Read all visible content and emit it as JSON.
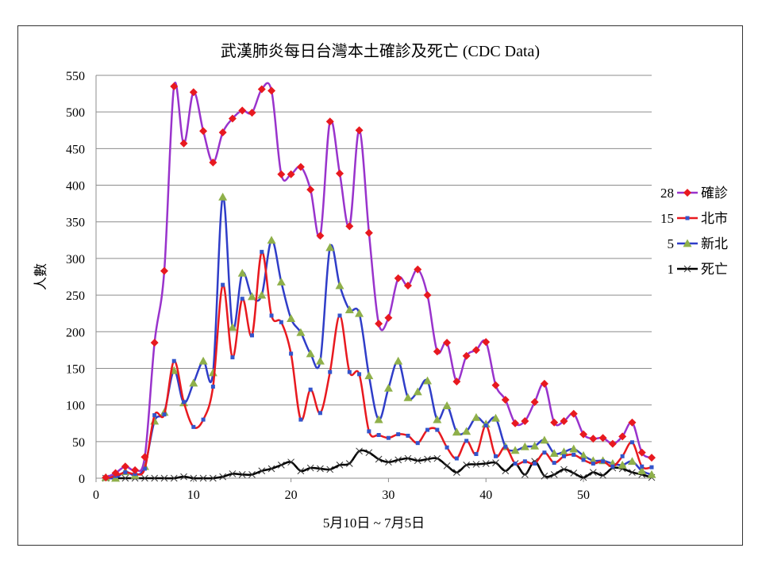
{
  "chart_data": {
    "type": "line",
    "title": "武漢肺炎每日台灣本土確診及死亡 (CDC Data)",
    "xlabel": "5月10日 ~ 7月5日",
    "ylabel": "人數",
    "xlim": [
      0,
      57
    ],
    "ylim": [
      0,
      550
    ],
    "xticks": [
      0,
      10,
      20,
      30,
      40,
      50
    ],
    "yticks": [
      0,
      50,
      100,
      150,
      200,
      250,
      300,
      350,
      400,
      450,
      500,
      550
    ],
    "grid": "horizontal",
    "legend_position": "right",
    "series": [
      {
        "name": "確診",
        "legend_value": "28",
        "color": "#9933cc",
        "marker": "diamond",
        "marker_color": "#e8191f",
        "x": [
          1,
          2,
          3,
          4,
          5,
          6,
          7,
          8,
          9,
          10,
          11,
          12,
          13,
          14,
          15,
          16,
          17,
          18,
          19,
          20,
          21,
          22,
          23,
          24,
          25,
          26,
          27,
          28,
          29,
          30,
          31,
          32,
          33,
          34,
          35,
          36,
          37,
          38,
          39,
          40,
          41,
          42,
          43,
          44,
          45,
          46,
          47,
          48,
          49,
          50,
          51,
          52,
          53,
          54,
          55,
          56,
          57
        ],
        "values": [
          1,
          7,
          16,
          11,
          29,
          185,
          283,
          535,
          457,
          527,
          474,
          431,
          472,
          491,
          502,
          499,
          531,
          529,
          415,
          415,
          425,
          394,
          331,
          487,
          416,
          344,
          475,
          335,
          211,
          219,
          273,
          263,
          285,
          250,
          173,
          185,
          132,
          167,
          175,
          186,
          127,
          107,
          75,
          78,
          104,
          129,
          76,
          78,
          88,
          60,
          54,
          55,
          47,
          57,
          76,
          35,
          28
        ]
      },
      {
        "name": "北市",
        "legend_value": "15",
        "color": "#e8191f",
        "marker": "square",
        "marker_color": "#3355cc",
        "x": [
          1,
          2,
          3,
          4,
          5,
          6,
          7,
          8,
          9,
          10,
          11,
          12,
          13,
          14,
          15,
          16,
          17,
          18,
          19,
          20,
          21,
          22,
          23,
          24,
          25,
          26,
          27,
          28,
          29,
          30,
          31,
          32,
          33,
          34,
          35,
          36,
          37,
          38,
          39,
          40,
          41,
          42,
          43,
          44,
          45,
          46,
          47,
          48,
          49,
          50,
          51,
          52,
          53,
          54,
          55,
          56,
          57
        ],
        "values": [
          0,
          3,
          8,
          6,
          13,
          86,
          87,
          160,
          104,
          70,
          80,
          125,
          264,
          165,
          245,
          195,
          309,
          222,
          213,
          170,
          80,
          121,
          89,
          145,
          222,
          145,
          142,
          64,
          59,
          55,
          60,
          58,
          48,
          66,
          66,
          42,
          27,
          51,
          33,
          72,
          30,
          43,
          20,
          23,
          20,
          35,
          21,
          30,
          32,
          25,
          20,
          23,
          16,
          30,
          49,
          16,
          15
        ]
      },
      {
        "name": "新北",
        "legend_value": "5",
        "color": "#2f3dc8",
        "marker": "triangle",
        "marker_color": "#8fb04a",
        "x": [
          1,
          2,
          3,
          4,
          5,
          6,
          7,
          8,
          9,
          10,
          11,
          12,
          13,
          14,
          15,
          16,
          17,
          18,
          19,
          20,
          21,
          22,
          23,
          24,
          25,
          26,
          27,
          28,
          29,
          30,
          31,
          32,
          33,
          34,
          35,
          36,
          37,
          38,
          39,
          40,
          41,
          42,
          43,
          44,
          45,
          46,
          47,
          48,
          49,
          50,
          51,
          52,
          53,
          54,
          55,
          56,
          57
        ],
        "values": [
          1,
          0,
          9,
          4,
          16,
          78,
          90,
          147,
          103,
          130,
          160,
          144,
          384,
          206,
          280,
          248,
          250,
          325,
          268,
          218,
          199,
          170,
          160,
          315,
          263,
          230,
          225,
          140,
          80,
          123,
          160,
          110,
          118,
          133,
          80,
          99,
          63,
          64,
          83,
          74,
          82,
          43,
          38,
          43,
          44,
          52,
          34,
          36,
          40,
          31,
          24,
          24,
          20,
          18,
          23,
          10,
          5
        ]
      },
      {
        "name": "死亡",
        "legend_value": "1",
        "color": "#000000",
        "marker": "x",
        "marker_color": "#333333",
        "x": [
          1,
          2,
          3,
          4,
          5,
          6,
          7,
          8,
          9,
          10,
          11,
          12,
          13,
          14,
          15,
          16,
          17,
          18,
          19,
          20,
          21,
          22,
          23,
          24,
          25,
          26,
          27,
          28,
          29,
          30,
          31,
          32,
          33,
          34,
          35,
          36,
          37,
          38,
          39,
          40,
          41,
          42,
          43,
          44,
          45,
          46,
          47,
          48,
          49,
          50,
          51,
          52,
          53,
          54,
          55,
          56,
          57
        ],
        "values": [
          0,
          0,
          0,
          0,
          0,
          0,
          0,
          0,
          2,
          0,
          0,
          0,
          2,
          6,
          5,
          5,
          10,
          13,
          18,
          22,
          10,
          14,
          13,
          12,
          18,
          20,
          37,
          35,
          26,
          22,
          25,
          27,
          24,
          26,
          27,
          17,
          8,
          18,
          19,
          20,
          21,
          10,
          20,
          5,
          23,
          3,
          5,
          12,
          7,
          1,
          8,
          4,
          14,
          13,
          8,
          5,
          1
        ]
      }
    ]
  }
}
